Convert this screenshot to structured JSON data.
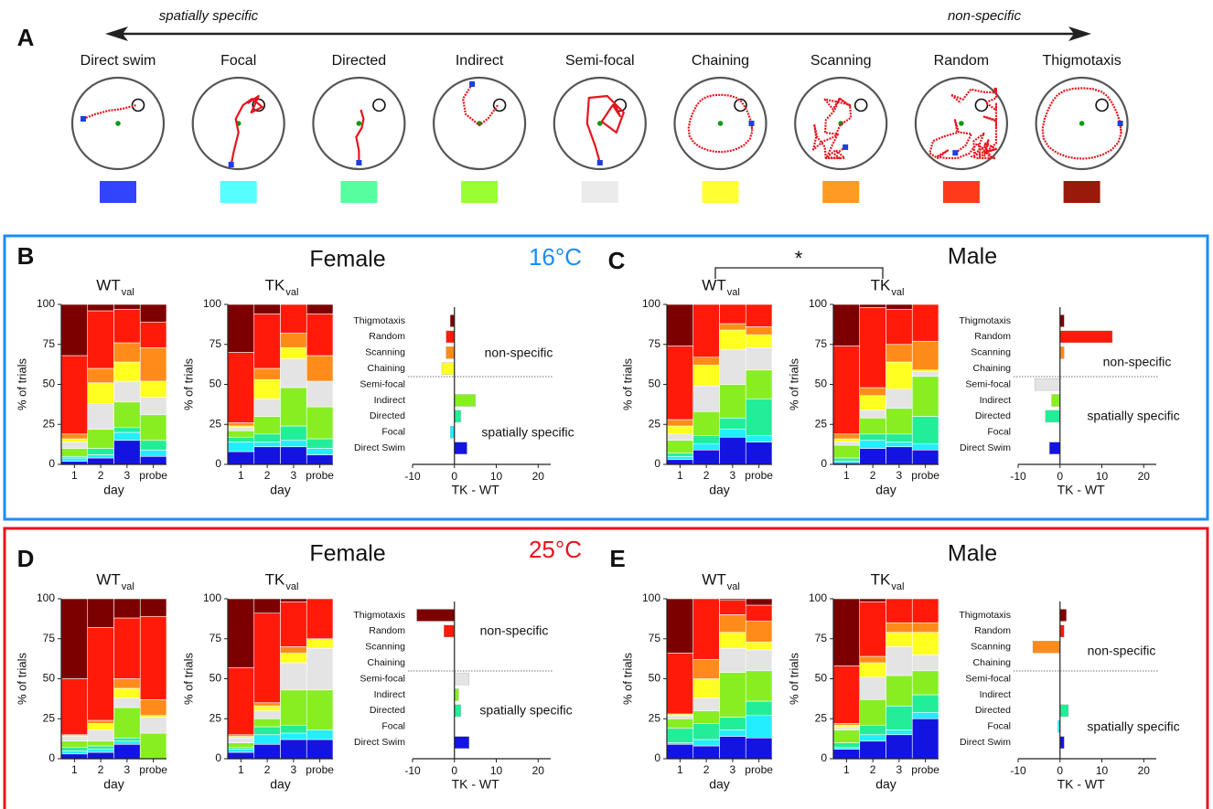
{
  "panel_a": {
    "label": "A",
    "left_label": "spatially specific",
    "right_label": "non-specific",
    "strategies": [
      {
        "name": "Direct swim",
        "color": "#3344ff"
      },
      {
        "name": "Focal",
        "color": "#55ffff"
      },
      {
        "name": "Directed",
        "color": "#55ffa0"
      },
      {
        "name": "Indirect",
        "color": "#99ff33"
      },
      {
        "name": "Semi-focal",
        "color": "#ebebeb"
      },
      {
        "name": "Chaining",
        "color": "#ffff33"
      },
      {
        "name": "Scanning",
        "color": "#ff9a22"
      },
      {
        "name": "Random",
        "color": "#ff3a1a"
      },
      {
        "name": "Thigmotaxis",
        "color": "#991a0a"
      }
    ]
  },
  "boxes": [
    {
      "temperature": "16°C"
    },
    {
      "temperature": "25°C"
    }
  ],
  "panels": [
    {
      "label": "B",
      "title": "Female"
    },
    {
      "label": "C",
      "title": "Male",
      "annotation": "*"
    },
    {
      "label": "D",
      "title": "Female"
    },
    {
      "label": "E",
      "title": "Male"
    }
  ],
  "chart_data": [
    {
      "type": "stacked_bar",
      "title": "WT",
      "title_subscript": "val",
      "categories": [
        "1",
        "2",
        "3",
        "probe"
      ],
      "xlabel": "day",
      "ylabel": "% of trials",
      "ylim": [
        0,
        100
      ],
      "yticks": [
        0,
        25,
        50,
        75,
        100
      ],
      "series": [
        {
          "color": "#1414e0",
          "values": [
            2,
            4,
            15,
            5
          ]
        },
        {
          "color": "#22eeff",
          "values": [
            2,
            2,
            5,
            4
          ]
        },
        {
          "color": "#22ee99",
          "values": [
            1,
            4,
            3,
            6
          ]
        },
        {
          "color": "#88ee22",
          "values": [
            5,
            12,
            16,
            16
          ]
        },
        {
          "color": "#e4e4e4",
          "values": [
            4,
            16,
            13,
            11
          ]
        },
        {
          "color": "#ffff22",
          "values": [
            2,
            13,
            12,
            10
          ]
        },
        {
          "color": "#ff8c1a",
          "values": [
            3,
            9,
            12,
            21
          ]
        },
        {
          "color": "#ff1a0a",
          "values": [
            49,
            36,
            21,
            16
          ]
        },
        {
          "color": "#7d0000",
          "values": [
            32,
            4,
            3,
            11
          ]
        }
      ]
    },
    {
      "type": "stacked_bar",
      "title": "TK",
      "title_subscript": "val",
      "categories": [
        "1",
        "2",
        "3",
        "probe"
      ],
      "xlabel": "day",
      "ylabel": "% of trials",
      "ylim": [
        0,
        100
      ],
      "yticks": [
        0,
        25,
        50,
        75,
        100
      ],
      "series": [
        {
          "color": "#1414e0",
          "values": [
            8,
            11,
            11,
            6
          ]
        },
        {
          "color": "#22eeff",
          "values": [
            6,
            3,
            4,
            4
          ]
        },
        {
          "color": "#22ee99",
          "values": [
            3,
            5,
            9,
            6
          ]
        },
        {
          "color": "#88ee22",
          "values": [
            4,
            11,
            24,
            20
          ]
        },
        {
          "color": "#e4e4e4",
          "values": [
            2,
            11,
            18,
            16
          ]
        },
        {
          "color": "#ffff22",
          "values": [
            1,
            12,
            7,
            0
          ]
        },
        {
          "color": "#ff8c1a",
          "values": [
            2,
            7,
            9,
            16
          ]
        },
        {
          "color": "#ff1a0a",
          "values": [
            44,
            34,
            18,
            26
          ]
        },
        {
          "color": "#7d0000",
          "values": [
            30,
            6,
            0,
            6
          ]
        }
      ]
    },
    {
      "type": "diverging_bar",
      "categories": [
        "Thigmotaxis",
        "Random",
        "Scanning",
        "Chaining",
        "Semi-focal",
        "Indirect",
        "Directed",
        "Focal",
        "Direct Swim"
      ],
      "colors": [
        "#7d0000",
        "#ff1a0a",
        "#ff8c1a",
        "#ffff22",
        "#e4e4e4",
        "#88ee22",
        "#22ee99",
        "#22eeff",
        "#1414e0"
      ],
      "values": [
        -1,
        -2,
        -2,
        -3,
        0,
        5,
        1.5,
        -1,
        3
      ],
      "xlim": [
        -10,
        23
      ],
      "xticks": [
        -10,
        0,
        10,
        20
      ],
      "xlabel": "TK - WT",
      "annotations": [
        "non-specific",
        "spatially specific"
      ]
    },
    {
      "type": "stacked_bar",
      "title": "WT",
      "title_subscript": "val",
      "categories": [
        "1",
        "2",
        "3",
        "probe"
      ],
      "xlabel": "day",
      "ylabel": "% of trials",
      "ylim": [
        0,
        100
      ],
      "yticks": [
        0,
        25,
        50,
        75,
        100
      ],
      "series": [
        {
          "color": "#1414e0",
          "values": [
            3,
            9,
            17,
            14
          ]
        },
        {
          "color": "#22eeff",
          "values": [
            2,
            4,
            5,
            4
          ]
        },
        {
          "color": "#22ee99",
          "values": [
            2,
            5,
            7,
            23
          ]
        },
        {
          "color": "#88ee22",
          "values": [
            8,
            15,
            21,
            18
          ]
        },
        {
          "color": "#e4e4e4",
          "values": [
            4,
            16,
            22,
            14
          ]
        },
        {
          "color": "#ffff22",
          "values": [
            5,
            13,
            12,
            8
          ]
        },
        {
          "color": "#ff8c1a",
          "values": [
            4,
            5,
            4,
            5
          ]
        },
        {
          "color": "#ff1a0a",
          "values": [
            46,
            33,
            12,
            14
          ]
        },
        {
          "color": "#7d0000",
          "values": [
            26,
            0,
            0,
            0
          ]
        }
      ]
    },
    {
      "type": "stacked_bar",
      "title": "TK",
      "title_subscript": "val",
      "categories": [
        "1",
        "2",
        "3",
        "probe"
      ],
      "xlabel": "day",
      "ylabel": "% of trials",
      "ylim": [
        0,
        100
      ],
      "yticks": [
        0,
        25,
        50,
        75,
        100
      ],
      "series": [
        {
          "color": "#1414e0",
          "values": [
            1,
            10,
            11,
            9
          ]
        },
        {
          "color": "#22eeff",
          "values": [
            1,
            5,
            3,
            4
          ]
        },
        {
          "color": "#22ee99",
          "values": [
            2,
            4,
            5,
            17
          ]
        },
        {
          "color": "#88ee22",
          "values": [
            8,
            10,
            16,
            25
          ]
        },
        {
          "color": "#e4e4e4",
          "values": [
            2,
            5,
            12,
            3
          ]
        },
        {
          "color": "#ffff22",
          "values": [
            2,
            9,
            17,
            1
          ]
        },
        {
          "color": "#ff8c1a",
          "values": [
            3,
            5,
            11,
            18
          ]
        },
        {
          "color": "#ff1a0a",
          "values": [
            55,
            50,
            22,
            23
          ]
        },
        {
          "color": "#7d0000",
          "values": [
            26,
            2,
            3,
            0
          ]
        }
      ]
    },
    {
      "type": "diverging_bar",
      "categories": [
        "Thigmotaxis",
        "Random",
        "Scanning",
        "Chaining",
        "Semi-focal",
        "Indirect",
        "Directed",
        "Focal",
        "Direct Swim"
      ],
      "colors": [
        "#7d0000",
        "#ff1a0a",
        "#ff8c1a",
        "#ffff22",
        "#e4e4e4",
        "#88ee22",
        "#22ee99",
        "#22eeff",
        "#1414e0"
      ],
      "values": [
        1,
        12.5,
        1,
        0,
        -6,
        -2,
        -3.5,
        0,
        -2.5
      ],
      "xlim": [
        -10,
        23
      ],
      "xticks": [
        -10,
        0,
        10,
        20
      ],
      "xlabel": "TK - WT",
      "annotations": [
        "non-specific",
        "spatially specific"
      ]
    },
    {
      "type": "stacked_bar",
      "title": "WT",
      "title_subscript": "val",
      "categories": [
        "1",
        "2",
        "3",
        "probe"
      ],
      "xlabel": "day",
      "ylabel": "% of trials",
      "ylim": [
        0,
        100
      ],
      "yticks": [
        0,
        25,
        50,
        75,
        100
      ],
      "series": [
        {
          "color": "#1414e0",
          "values": [
            3,
            4,
            9,
            0
          ]
        },
        {
          "color": "#22eeff",
          "values": [
            2,
            2,
            2,
            0
          ]
        },
        {
          "color": "#22ee99",
          "values": [
            2,
            2,
            2,
            0
          ]
        },
        {
          "color": "#88ee22",
          "values": [
            4,
            3,
            19,
            16
          ]
        },
        {
          "color": "#e4e4e4",
          "values": [
            3,
            7,
            6,
            10
          ]
        },
        {
          "color": "#ffff22",
          "values": [
            1,
            4,
            6,
            1
          ]
        },
        {
          "color": "#ff8c1a",
          "values": [
            0,
            2,
            6,
            10
          ]
        },
        {
          "color": "#ff1a0a",
          "values": [
            35,
            58,
            38,
            52
          ]
        },
        {
          "color": "#7d0000",
          "values": [
            50,
            18,
            12,
            11
          ]
        }
      ]
    },
    {
      "type": "stacked_bar",
      "title": "TK",
      "title_subscript": "val",
      "categories": [
        "1",
        "2",
        "3",
        "probe"
      ],
      "xlabel": "day",
      "ylabel": "% of trials",
      "ylim": [
        0,
        100
      ],
      "yticks": [
        0,
        25,
        50,
        75,
        100
      ],
      "series": [
        {
          "color": "#1414e0",
          "values": [
            4,
            9,
            12,
            12
          ]
        },
        {
          "color": "#22eeff",
          "values": [
            2,
            6,
            4,
            6
          ]
        },
        {
          "color": "#22ee99",
          "values": [
            1,
            5,
            5,
            0
          ]
        },
        {
          "color": "#88ee22",
          "values": [
            3,
            5,
            22,
            25
          ]
        },
        {
          "color": "#e4e4e4",
          "values": [
            3,
            5,
            17,
            26
          ]
        },
        {
          "color": "#ffff22",
          "values": [
            1,
            3,
            6,
            6
          ]
        },
        {
          "color": "#ff8c1a",
          "values": [
            1,
            2,
            4,
            0
          ]
        },
        {
          "color": "#ff1a0a",
          "values": [
            42,
            56,
            28,
            25
          ]
        },
        {
          "color": "#7d0000",
          "values": [
            43,
            9,
            2,
            0
          ]
        }
      ]
    },
    {
      "type": "diverging_bar",
      "categories": [
        "Thigmotaxis",
        "Random",
        "Scanning",
        "Chaining",
        "Semi-focal",
        "Indirect",
        "Directed",
        "Focal",
        "Direct Swim"
      ],
      "colors": [
        "#7d0000",
        "#ff1a0a",
        "#ff8c1a",
        "#ffff22",
        "#e4e4e4",
        "#88ee22",
        "#22ee99",
        "#22eeff",
        "#1414e0"
      ],
      "values": [
        -9,
        -2.5,
        0,
        0,
        3.5,
        1,
        1.5,
        0,
        3.5
      ],
      "xlim": [
        -10,
        23
      ],
      "xticks": [
        -10,
        0,
        10,
        20
      ],
      "xlabel": "TK - WT",
      "annotations": [
        "non-specific",
        "spatially specific"
      ]
    },
    {
      "type": "stacked_bar",
      "title": "WT",
      "title_subscript": "val",
      "categories": [
        "1",
        "2",
        "3",
        "probe"
      ],
      "xlabel": "day",
      "ylabel": "% of trials",
      "ylim": [
        0,
        100
      ],
      "yticks": [
        0,
        25,
        50,
        75,
        100
      ],
      "series": [
        {
          "color": "#1414e0",
          "values": [
            9,
            8,
            14,
            13
          ]
        },
        {
          "color": "#22eeff",
          "values": [
            1,
            4,
            4,
            14
          ]
        },
        {
          "color": "#22ee99",
          "values": [
            9,
            10,
            8,
            9
          ]
        },
        {
          "color": "#88ee22",
          "values": [
            6,
            8,
            28,
            19
          ]
        },
        {
          "color": "#e4e4e4",
          "values": [
            2,
            8,
            15,
            13
          ]
        },
        {
          "color": "#ffff22",
          "values": [
            1,
            12,
            10,
            5
          ]
        },
        {
          "color": "#ff8c1a",
          "values": [
            0,
            12,
            11,
            13
          ]
        },
        {
          "color": "#ff1a0a",
          "values": [
            38,
            38,
            9,
            10
          ]
        },
        {
          "color": "#7d0000",
          "values": [
            34,
            0,
            1,
            4
          ]
        }
      ]
    },
    {
      "type": "stacked_bar",
      "title": "TK",
      "title_subscript": "val",
      "categories": [
        "1",
        "2",
        "3",
        "probe"
      ],
      "xlabel": "day",
      "ylabel": "% of trials",
      "ylim": [
        0,
        100
      ],
      "yticks": [
        0,
        25,
        50,
        75,
        100
      ],
      "series": [
        {
          "color": "#1414e0",
          "values": [
            6,
            11,
            15,
            25
          ]
        },
        {
          "color": "#22eeff",
          "values": [
            1,
            4,
            3,
            4
          ]
        },
        {
          "color": "#22ee99",
          "values": [
            3,
            6,
            15,
            11
          ]
        },
        {
          "color": "#88ee22",
          "values": [
            8,
            16,
            19,
            15
          ]
        },
        {
          "color": "#e4e4e4",
          "values": [
            2,
            14,
            18,
            10
          ]
        },
        {
          "color": "#ffff22",
          "values": [
            1,
            9,
            9,
            14
          ]
        },
        {
          "color": "#ff8c1a",
          "values": [
            1,
            4,
            6,
            6
          ]
        },
        {
          "color": "#ff1a0a",
          "values": [
            36,
            34,
            15,
            15
          ]
        },
        {
          "color": "#7d0000",
          "values": [
            42,
            2,
            0,
            0
          ]
        }
      ]
    },
    {
      "type": "diverging_bar",
      "categories": [
        "Thigmotaxis",
        "Random",
        "Scanning",
        "Chaining",
        "Semi-focal",
        "Indirect",
        "Directed",
        "Focal",
        "Direct Swim"
      ],
      "colors": [
        "#7d0000",
        "#ff1a0a",
        "#ff8c1a",
        "#ffff22",
        "#e4e4e4",
        "#88ee22",
        "#22ee99",
        "#22eeff",
        "#1414e0"
      ],
      "values": [
        1.5,
        1,
        -6.5,
        0,
        0,
        0,
        2,
        -0.5,
        1
      ],
      "xlim": [
        -10,
        23
      ],
      "xticks": [
        -10,
        0,
        10,
        20
      ],
      "xlabel": "TK - WT",
      "annotations": [
        "non-specific",
        "spatially specific"
      ]
    }
  ]
}
